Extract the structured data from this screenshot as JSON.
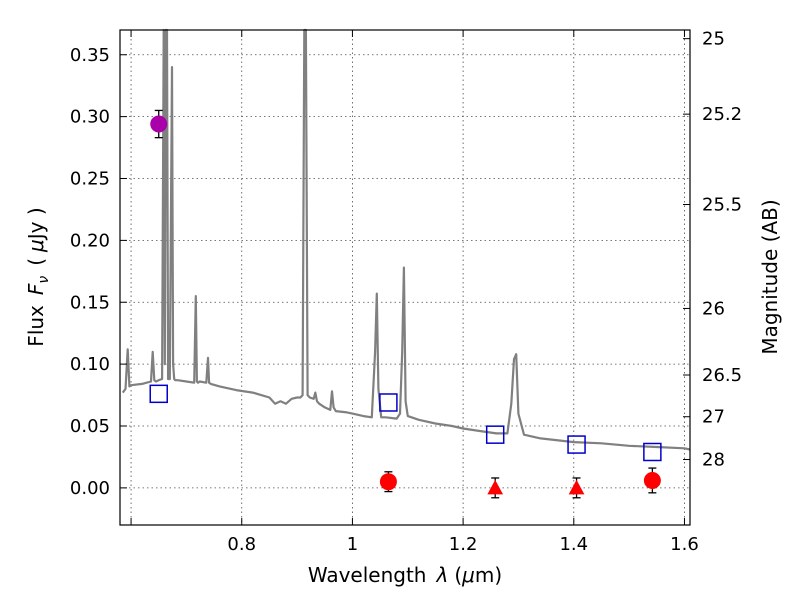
{
  "chart_data": {
    "type": "scatter",
    "xlabel_prefix": "Wavelength",
    "xlabel_symbol": "λ",
    "xlabel_unit_open": "(",
    "xlabel_unit_mu": "μ",
    "xlabel_unit_rest": "m)",
    "ylabel_prefix": "Flux",
    "ylabel_symbol_F": "F",
    "ylabel_symbol_sub": "ν",
    "ylabel_unit_open": "(",
    "ylabel_unit_mu": "μ",
    "ylabel_unit_rest": "Jy )",
    "y2label": "Magnitude (AB)",
    "xlim": [
      0.58,
      1.61
    ],
    "ylim": [
      -0.03,
      0.37
    ],
    "grid": true,
    "xticks": [
      {
        "value": 0.6,
        "label": ""
      },
      {
        "value": 0.8,
        "label": "0.8"
      },
      {
        "value": 1.0,
        "label": "1"
      },
      {
        "value": 1.2,
        "label": "1.2"
      },
      {
        "value": 1.4,
        "label": "1.4"
      },
      {
        "value": 1.6,
        "label": "1.6"
      }
    ],
    "yticks": [
      {
        "value": 0.0,
        "label": "0.00"
      },
      {
        "value": 0.05,
        "label": "0.05"
      },
      {
        "value": 0.1,
        "label": "0.10"
      },
      {
        "value": 0.15,
        "label": "0.15"
      },
      {
        "value": 0.2,
        "label": "0.20"
      },
      {
        "value": 0.25,
        "label": "0.25"
      },
      {
        "value": 0.3,
        "label": "0.30"
      },
      {
        "value": 0.35,
        "label": "0.35"
      }
    ],
    "y2ticks": [
      {
        "label": "25",
        "flux": 0.363
      },
      {
        "label": "25.2",
        "flux": 0.302
      },
      {
        "label": "25.5",
        "flux": 0.229
      },
      {
        "label": "26",
        "flux": 0.145
      },
      {
        "label": "26.5",
        "flux": 0.0912
      },
      {
        "label": "27",
        "flux": 0.0575
      },
      {
        "label": "28",
        "flux": 0.0229
      }
    ],
    "model_spectrum": {
      "color": "#808080",
      "x": [
        0.585,
        0.59,
        0.594,
        0.597,
        0.6,
        0.62,
        0.636,
        0.639,
        0.642,
        0.645,
        0.65,
        0.656,
        0.659,
        0.661,
        0.663,
        0.665,
        0.667,
        0.67,
        0.674,
        0.676,
        0.678,
        0.68,
        0.684,
        0.7,
        0.714,
        0.717,
        0.719,
        0.721,
        0.724,
        0.736,
        0.739,
        0.741,
        0.744,
        0.76,
        0.79,
        0.82,
        0.85,
        0.86,
        0.87,
        0.88,
        0.89,
        0.9,
        0.906,
        0.91,
        0.913,
        0.916,
        0.919,
        0.923,
        0.93,
        0.933,
        0.936,
        0.94,
        0.95,
        0.96,
        0.963,
        0.966,
        0.97,
        0.99,
        1.0,
        1.02,
        1.035,
        1.041,
        1.044,
        1.047,
        1.052,
        1.06,
        1.08,
        1.086,
        1.09,
        1.093,
        1.096,
        1.1,
        1.12,
        1.15,
        1.18,
        1.2,
        1.23,
        1.26,
        1.28,
        1.287,
        1.292,
        1.296,
        1.3,
        1.31,
        1.32,
        1.34,
        1.38,
        1.4,
        1.45,
        1.5,
        1.55,
        1.6,
        1.61
      ],
      "y": [
        0.077,
        0.08,
        0.112,
        0.082,
        0.083,
        0.084,
        0.086,
        0.11,
        0.087,
        0.086,
        0.087,
        0.088,
        0.37,
        0.1,
        0.37,
        0.37,
        0.088,
        0.088,
        0.34,
        0.1,
        0.088,
        0.087,
        0.087,
        0.086,
        0.085,
        0.155,
        0.086,
        0.085,
        0.086,
        0.085,
        0.105,
        0.085,
        0.084,
        0.082,
        0.079,
        0.077,
        0.073,
        0.068,
        0.07,
        0.068,
        0.072,
        0.073,
        0.073,
        0.075,
        0.37,
        0.37,
        0.075,
        0.073,
        0.072,
        0.077,
        0.07,
        0.068,
        0.065,
        0.063,
        0.078,
        0.065,
        0.062,
        0.061,
        0.06,
        0.058,
        0.057,
        0.11,
        0.157,
        0.08,
        0.057,
        0.057,
        0.056,
        0.06,
        0.11,
        0.178,
        0.07,
        0.058,
        0.055,
        0.052,
        0.05,
        0.048,
        0.046,
        0.044,
        0.044,
        0.068,
        0.104,
        0.108,
        0.06,
        0.043,
        0.042,
        0.04,
        0.038,
        0.037,
        0.036,
        0.034,
        0.033,
        0.032,
        0.031
      ]
    },
    "series": [
      {
        "marker": "circle",
        "color": "#aa00aa",
        "points": [
          {
            "x": 0.65,
            "y": 0.294,
            "err": 0.011
          }
        ]
      },
      {
        "marker": "open-square",
        "color": "#0000cc",
        "points": [
          {
            "x": 0.65,
            "y": 0.076
          },
          {
            "x": 1.065,
            "y": 0.069
          },
          {
            "x": 1.258,
            "y": 0.043
          },
          {
            "x": 1.405,
            "y": 0.035
          },
          {
            "x": 1.542,
            "y": 0.029
          }
        ]
      },
      {
        "marker": "circle",
        "color": "#ff0000",
        "points": [
          {
            "x": 1.065,
            "y": 0.005,
            "err": 0.008
          },
          {
            "x": 1.542,
            "y": 0.006,
            "err": 0.01
          }
        ]
      },
      {
        "marker": "triangle",
        "color": "#ff0000",
        "points": [
          {
            "x": 1.258,
            "y": 0.0,
            "err": 0.008
          },
          {
            "x": 1.405,
            "y": 0.0,
            "err": 0.008
          }
        ]
      }
    ]
  }
}
